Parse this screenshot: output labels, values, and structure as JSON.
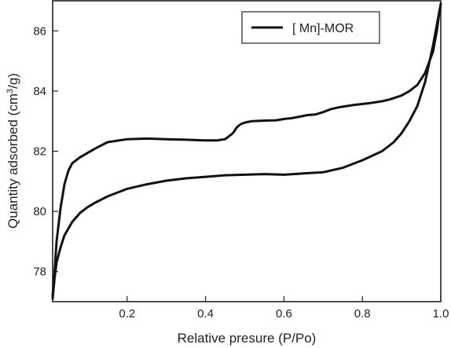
{
  "chart_data": {
    "type": "line",
    "title": "",
    "xlabel": "Relative presure (P/Po)",
    "ylabel_main": "Quantity adsorbed (cm",
    "ylabel_sup": "3",
    "ylabel_tail": "/g)",
    "xlim": [
      0.01,
      1.0
    ],
    "ylim": [
      77.0,
      87.0
    ],
    "xticks": [
      "0.2",
      "0.4",
      "0.6",
      "0.8",
      "1.0"
    ],
    "xtick_values": [
      0.2,
      0.4,
      0.6,
      0.8,
      1.0
    ],
    "yticks": [
      "78",
      "80",
      "82",
      "84",
      "86"
    ],
    "ytick_values": [
      78,
      80,
      82,
      84,
      86
    ],
    "grid": false,
    "legend_position": "top-right",
    "series": [
      {
        "name": "[ Mn]-MOR",
        "color": "#111111",
        "x": [
          0.01,
          0.015,
          0.02,
          0.03,
          0.04,
          0.06,
          0.08,
          0.1,
          0.12,
          0.15,
          0.2,
          0.25,
          0.3,
          0.35,
          0.4,
          0.45,
          0.5,
          0.55,
          0.6,
          0.65,
          0.7,
          0.75,
          0.8,
          0.85,
          0.88,
          0.9,
          0.92,
          0.94,
          0.96,
          0.98,
          0.99,
          1.0,
          0.995,
          0.99,
          0.98,
          0.96,
          0.94,
          0.92,
          0.9,
          0.87,
          0.85,
          0.82,
          0.8,
          0.78,
          0.76,
          0.74,
          0.72,
          0.7,
          0.68,
          0.66,
          0.64,
          0.62,
          0.6,
          0.58,
          0.56,
          0.54,
          0.52,
          0.51,
          0.5,
          0.49,
          0.48,
          0.47,
          0.45,
          0.43,
          0.4,
          0.35,
          0.3,
          0.25,
          0.2,
          0.15,
          0.12,
          0.1,
          0.08,
          0.06,
          0.05,
          0.04,
          0.03,
          0.02,
          0.015,
          0.01
        ],
        "y": [
          77.1,
          77.8,
          78.3,
          78.8,
          79.2,
          79.65,
          79.95,
          80.15,
          80.3,
          80.5,
          80.75,
          80.9,
          81.02,
          81.1,
          81.15,
          81.2,
          81.22,
          81.24,
          81.22,
          81.26,
          81.3,
          81.45,
          81.7,
          82.0,
          82.3,
          82.6,
          83.0,
          83.5,
          84.3,
          85.5,
          86.2,
          86.9,
          86.5,
          86.0,
          85.3,
          84.6,
          84.2,
          84.0,
          83.85,
          83.72,
          83.66,
          83.6,
          83.57,
          83.54,
          83.5,
          83.46,
          83.4,
          83.3,
          83.22,
          83.2,
          83.15,
          83.1,
          83.07,
          83.03,
          83.02,
          83.01,
          83.0,
          82.98,
          82.95,
          82.9,
          82.8,
          82.6,
          82.4,
          82.36,
          82.36,
          82.38,
          82.4,
          82.42,
          82.4,
          82.3,
          82.1,
          81.95,
          81.8,
          81.6,
          81.35,
          80.9,
          80.1,
          79.0,
          78.0,
          77.2
        ]
      }
    ]
  }
}
